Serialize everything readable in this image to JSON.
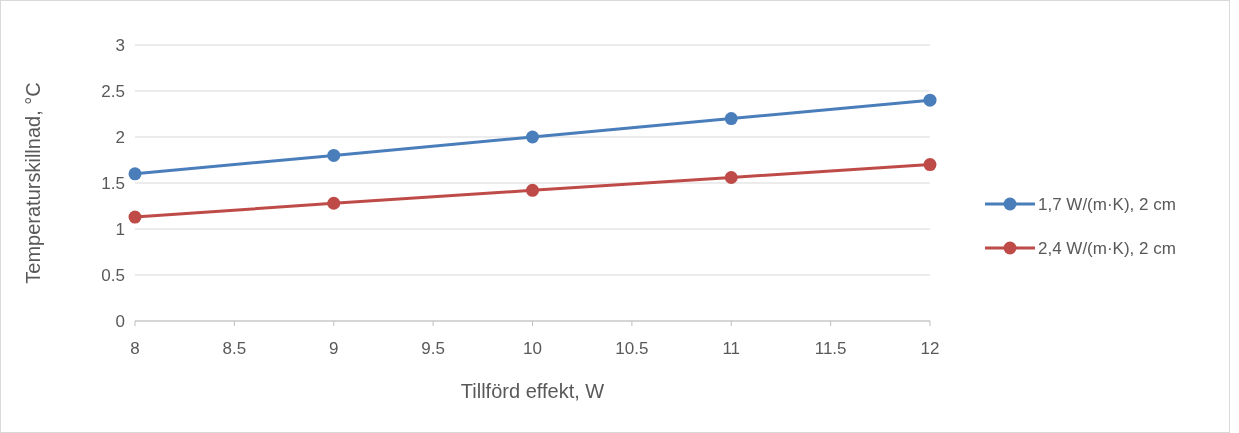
{
  "chart_data": {
    "type": "line",
    "xlabel": "Tillförd effekt, W",
    "ylabel": "Temperaturskillnad, °C",
    "x": [
      8,
      9,
      10,
      11,
      12
    ],
    "series": [
      {
        "name": "1,7 W/(m·K), 2 cm",
        "color": "#4a7ebb",
        "values": [
          1.6,
          1.8,
          2.0,
          2.2,
          2.4
        ]
      },
      {
        "name": "2,4 W/(m·K), 2 cm",
        "color": "#be4b48",
        "values": [
          1.13,
          1.28,
          1.42,
          1.56,
          1.7
        ]
      }
    ],
    "xlim": [
      8,
      12
    ],
    "xticks": [
      8,
      8.5,
      9,
      9.5,
      10,
      10.5,
      11,
      11.5,
      12
    ],
    "ylim": [
      0,
      3
    ],
    "yticks": [
      0,
      0.5,
      1,
      1.5,
      2,
      2.5,
      3
    ],
    "grid": "y",
    "legend": "right",
    "marker": "circle",
    "line_style": "solid"
  }
}
